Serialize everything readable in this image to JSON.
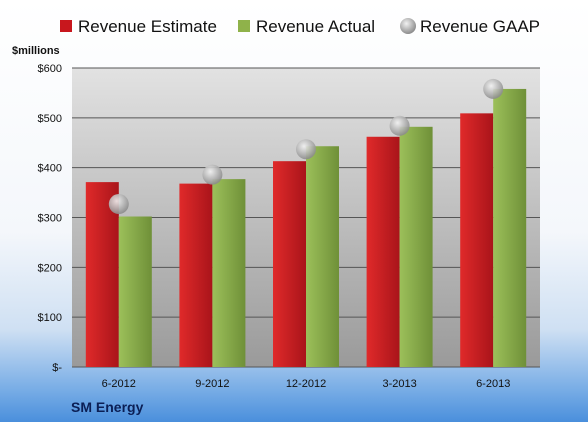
{
  "chart_data": {
    "type": "bar",
    "unit_label": "$millions",
    "company": "SM Energy",
    "categories": [
      "6-2012",
      "9-2012",
      "12-2012",
      "3-2013",
      "6-2013"
    ],
    "series": [
      {
        "name": "Revenue Estimate",
        "kind": "bar",
        "color": "#c8171d",
        "values": [
          371,
          368,
          413,
          462,
          509
        ]
      },
      {
        "name": "Revenue Actual",
        "kind": "bar",
        "color": "#8fb24a",
        "values": [
          302,
          377,
          443,
          482,
          558
        ]
      },
      {
        "name": "Revenue GAAP",
        "kind": "marker",
        "color": "#b7b7b7",
        "values": [
          327,
          386,
          437,
          484,
          558
        ]
      }
    ],
    "ylim": [
      0,
      600
    ],
    "yticks": [
      0,
      100,
      200,
      300,
      400,
      500,
      600
    ],
    "ytick_labels": [
      "$-",
      "$100",
      "$200",
      "$300",
      "$400",
      "$500",
      "$600"
    ],
    "grid": true,
    "legend_position": "top"
  }
}
